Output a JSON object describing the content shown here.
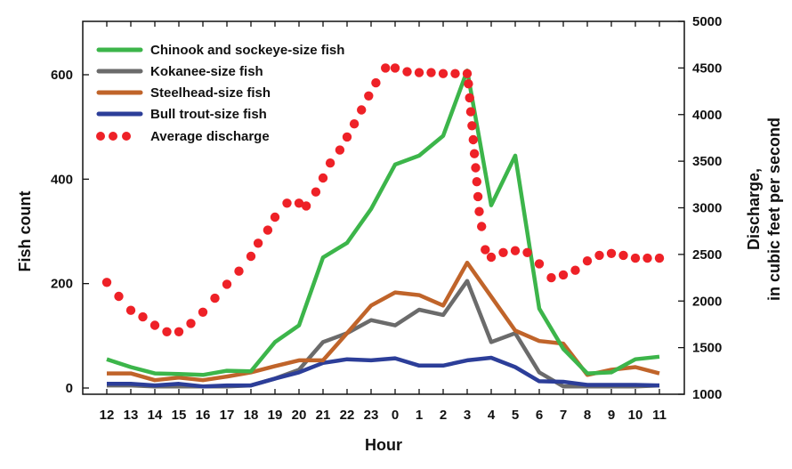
{
  "chart_data": {
    "type": "line",
    "title": "",
    "xlabel": "Hour",
    "ylabel": "Fish count",
    "y2label": [
      "Discharge,",
      "in cubic feet per second"
    ],
    "categories": [
      "12",
      "13",
      "14",
      "15",
      "16",
      "17",
      "18",
      "19",
      "20",
      "21",
      "22",
      "23",
      "0",
      "1",
      "2",
      "3",
      "4",
      "5",
      "6",
      "7",
      "8",
      "9",
      "10",
      "11"
    ],
    "ylim": [
      0,
      700
    ],
    "yticks": [
      0,
      200,
      400,
      600
    ],
    "y2lim": [
      1000,
      5000
    ],
    "y2ticks": [
      1000,
      1500,
      2000,
      2500,
      3000,
      3500,
      4000,
      4500,
      5000
    ],
    "grid": false,
    "legend": "top-left",
    "series": [
      {
        "name": "Chinook and sockeye-size fish",
        "axis": "left",
        "color": "#3cb54a",
        "values": [
          55,
          40,
          28,
          27,
          25,
          33,
          32,
          88,
          120,
          250,
          278,
          343,
          428,
          445,
          483,
          608,
          350,
          445,
          152,
          75,
          28,
          30,
          55,
          60
        ]
      },
      {
        "name": "Kokanee-size fish",
        "axis": "left",
        "color": "#6b6b6b",
        "values": [
          5,
          5,
          3,
          3,
          3,
          3,
          5,
          18,
          35,
          88,
          105,
          130,
          120,
          150,
          140,
          205,
          88,
          105,
          30,
          3,
          3,
          3,
          3,
          5
        ]
      },
      {
        "name": "Steelhead-size fish",
        "axis": "left",
        "color": "#c0642a",
        "values": [
          28,
          28,
          15,
          20,
          15,
          22,
          30,
          42,
          53,
          53,
          105,
          158,
          183,
          178,
          158,
          240,
          175,
          110,
          90,
          85,
          25,
          35,
          40,
          28
        ]
      },
      {
        "name": "Bull trout-size fish",
        "axis": "left",
        "color": "#2c3e99",
        "values": [
          8,
          8,
          5,
          8,
          3,
          5,
          5,
          18,
          30,
          48,
          55,
          53,
          57,
          43,
          43,
          53,
          58,
          40,
          13,
          12,
          6,
          6,
          6,
          5
        ]
      }
    ],
    "discharge": {
      "name": "Average discharge",
      "axis": "right",
      "color": "#ee2127",
      "style": "dotted",
      "x": [
        0,
        0.5,
        1,
        1.5,
        2,
        2.5,
        3,
        3.5,
        4,
        4.5,
        5,
        5.5,
        6,
        6.3,
        6.7,
        7,
        7.5,
        8,
        8.3,
        8.7,
        9,
        9.3,
        9.7,
        10,
        10.3,
        10.6,
        10.9,
        11.2,
        11.6,
        12,
        12.5,
        13,
        13.5,
        14,
        14.5,
        15,
        15.05,
        15.1,
        15.15,
        15.2,
        15.25,
        15.3,
        15.35,
        15.4,
        15.45,
        15.5,
        15.6,
        15.75,
        16,
        16.5,
        17,
        17.5,
        18,
        18.5,
        19,
        19.5,
        20,
        20.5,
        21,
        21.5,
        22,
        22.5,
        23
      ],
      "values": [
        2200,
        2050,
        1900,
        1830,
        1740,
        1670,
        1670,
        1760,
        1880,
        2030,
        2180,
        2320,
        2480,
        2620,
        2760,
        2900,
        3050,
        3050,
        3020,
        3170,
        3320,
        3480,
        3620,
        3760,
        3900,
        4050,
        4200,
        4340,
        4500,
        4500,
        4460,
        4450,
        4450,
        4440,
        4440,
        4440,
        4330,
        4180,
        4030,
        3880,
        3730,
        3580,
        3430,
        3280,
        3120,
        2960,
        2800,
        2550,
        2470,
        2520,
        2540,
        2520,
        2400,
        2250,
        2280,
        2330,
        2430,
        2490,
        2510,
        2490,
        2460,
        2460,
        2460
      ]
    }
  }
}
